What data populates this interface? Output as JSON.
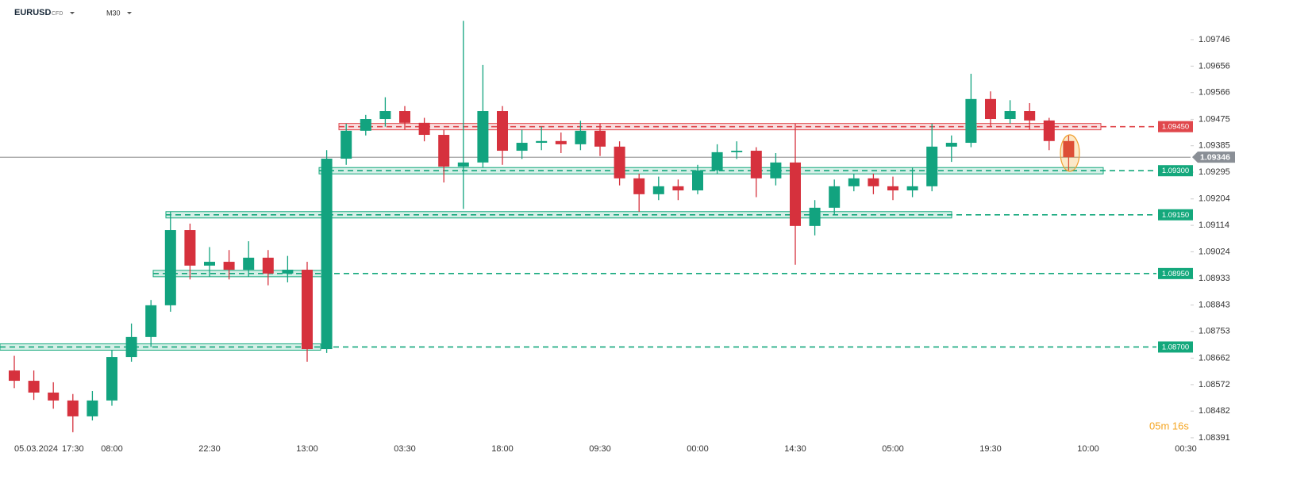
{
  "header": {
    "symbol": "EURUSD",
    "kind": "CFD",
    "interval": "M30"
  },
  "chart_data": {
    "type": "candlestick",
    "categories": [
      "05.03.2024",
      null,
      null,
      "17:30",
      null,
      "08:00",
      null,
      null,
      null,
      null,
      "22:30",
      null,
      null,
      null,
      null,
      "13:00",
      null,
      null,
      null,
      null,
      "03:30",
      null,
      null,
      null,
      null,
      "18:00",
      null,
      null,
      null,
      null,
      "09:30",
      null,
      null,
      null,
      null,
      "00:00",
      null,
      null,
      null,
      null,
      "14:30",
      null,
      null,
      null,
      null,
      "05:00",
      null,
      null,
      null,
      null,
      "19:30",
      null,
      null,
      null,
      null,
      "10:00",
      null,
      null,
      null,
      null,
      "00:30"
    ],
    "open": [
      1.0862,
      1.08585,
      1.08545,
      1.08518,
      1.08464,
      1.08518,
      1.08666,
      1.08734,
      1.08842,
      1.09098,
      1.08977,
      1.0899,
      1.08963,
      1.09004,
      1.0895,
      1.08963,
      1.08693,
      1.09341,
      1.09436,
      1.09476,
      1.09503,
      1.09463,
      1.09422,
      1.09314,
      1.09328,
      1.09503,
      1.09368,
      1.09395,
      1.09401,
      1.0939,
      1.09436,
      1.09382,
      1.09274,
      1.0922,
      1.09247,
      1.09233,
      1.09301,
      1.09363,
      1.09368,
      1.09274,
      1.09328,
      1.09112,
      1.09174,
      1.09247,
      1.09274,
      1.09247,
      1.09233,
      1.09247,
      1.09382,
      1.09395,
      1.09544,
      1.09476,
      1.09503,
      1.09471,
      1.09401,
      null,
      null,
      null,
      null,
      null,
      null
    ],
    "high": [
      1.0867,
      1.0862,
      1.0858,
      1.0854,
      1.0855,
      1.0869,
      1.0878,
      1.0886,
      1.0916,
      1.0912,
      1.0904,
      1.0903,
      1.0906,
      1.0903,
      1.0901,
      1.0899,
      1.0937,
      1.0946,
      1.0949,
      1.0955,
      1.0952,
      1.0948,
      1.0944,
      1.0981,
      1.0966,
      1.0952,
      1.0944,
      1.0945,
      1.0943,
      1.0947,
      1.0946,
      1.094,
      1.0929,
      1.0928,
      1.0927,
      1.0932,
      1.0939,
      1.094,
      1.0938,
      1.0936,
      1.0946,
      1.092,
      1.0927,
      1.0929,
      1.0929,
      1.0928,
      1.0931,
      1.0946,
      1.0942,
      1.0963,
      1.0957,
      1.0954,
      1.0953,
      1.0948,
      1.0942,
      null,
      null,
      null,
      null,
      null,
      null
    ],
    "low": [
      1.0856,
      1.0852,
      1.0849,
      1.0841,
      1.0845,
      1.085,
      1.0865,
      1.087,
      1.0882,
      1.0893,
      1.0894,
      1.0893,
      1.0894,
      1.0891,
      1.0892,
      1.0865,
      1.0868,
      1.0932,
      1.0942,
      1.0945,
      1.0944,
      1.094,
      1.0926,
      1.0917,
      1.0931,
      1.0932,
      1.0934,
      1.0937,
      1.0936,
      1.0937,
      1.0935,
      1.0925,
      1.0916,
      1.092,
      1.092,
      1.0922,
      1.0929,
      1.0934,
      1.0921,
      1.0925,
      1.0898,
      1.0908,
      1.0915,
      1.0923,
      1.0922,
      1.092,
      1.0921,
      1.0923,
      1.0933,
      1.0938,
      1.0945,
      1.0946,
      1.0944,
      1.0937,
      1.093,
      null,
      null,
      null,
      null,
      null,
      null
    ],
    "close": [
      1.08585,
      1.08545,
      1.08518,
      1.08464,
      1.08518,
      1.08666,
      1.08734,
      1.08842,
      1.09098,
      1.08977,
      1.0899,
      1.08963,
      1.09004,
      1.0895,
      1.08963,
      1.08693,
      1.09341,
      1.09436,
      1.09476,
      1.09503,
      1.09463,
      1.09422,
      1.09314,
      1.09328,
      1.09503,
      1.09368,
      1.09395,
      1.09401,
      1.0939,
      1.09436,
      1.09382,
      1.09274,
      1.0922,
      1.09247,
      1.09233,
      1.09301,
      1.09363,
      1.09368,
      1.09274,
      1.09328,
      1.09112,
      1.09174,
      1.09247,
      1.09274,
      1.09247,
      1.09233,
      1.09247,
      1.09382,
      1.09395,
      1.09544,
      1.09476,
      1.09503,
      1.09471,
      1.09401,
      1.09346,
      null,
      null,
      null,
      null,
      null,
      null
    ],
    "up_color": "#12a37f",
    "down_color": "#d6313d",
    "ylim": [
      1.0838,
      1.09881
    ],
    "yticks": [
      1.09746,
      1.09656,
      1.09566,
      1.09475,
      1.09385,
      1.09295,
      1.09204,
      1.09114,
      1.09024,
      1.08933,
      1.08843,
      1.08753,
      1.08662,
      1.08572,
      1.08482,
      1.08391
    ],
    "levels": [
      {
        "value": 1.0945,
        "label": "1.09450",
        "color": "#e0474c"
      },
      {
        "value": 1.093,
        "label": "1.09300",
        "color": "#14a87c"
      },
      {
        "value": 1.0915,
        "label": "1.09150",
        "color": "#14a87c"
      },
      {
        "value": 1.0895,
        "label": "1.08950",
        "color": "#14a87c"
      },
      {
        "value": 1.087,
        "label": "1.08700",
        "color": "#14a87c"
      }
    ],
    "last": 1.09346,
    "timer": "05m 16s"
  }
}
